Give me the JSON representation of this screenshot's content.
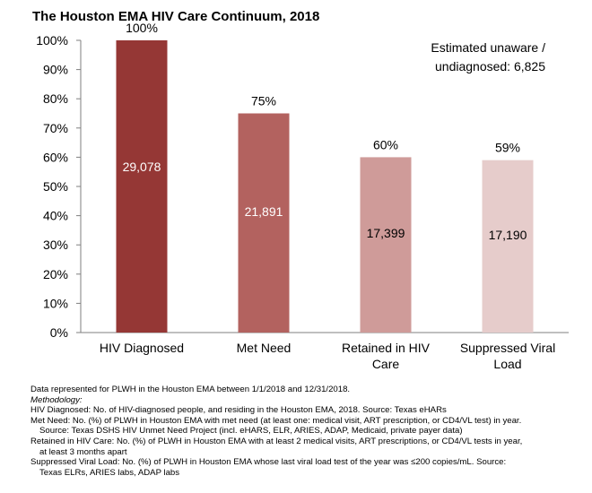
{
  "chart_data": {
    "type": "bar",
    "title": "The Houston EMA HIV Care Continuum, 2018",
    "categories": [
      "HIV Diagnosed",
      "Met Need",
      "Retained in HIV Care",
      "Suppressed Viral Load"
    ],
    "category_lines": [
      [
        "HIV Diagnosed"
      ],
      [
        "Met Need"
      ],
      [
        "Retained in HIV",
        "Care"
      ],
      [
        "Suppressed Viral",
        "Load"
      ]
    ],
    "values": [
      100,
      75,
      60,
      59
    ],
    "value_labels": [
      "100%",
      "75%",
      "60%",
      "59%"
    ],
    "counts": [
      "29,078",
      "21,891",
      "17,399",
      "17,190"
    ],
    "bar_colors": [
      "#953735",
      "#b3625f",
      "#cf9b99",
      "#e6cccb"
    ],
    "count_text_colors": [
      "#ffffff",
      "#ffffff",
      "#000000",
      "#000000"
    ],
    "ylim": [
      0,
      100
    ],
    "yticks": [
      "0%",
      "10%",
      "20%",
      "30%",
      "40%",
      "50%",
      "60%",
      "70%",
      "80%",
      "90%",
      "100%"
    ],
    "xlabel": "",
    "ylabel": "",
    "grid": false,
    "annotation": [
      "Estimated unaware /",
      "undiagnosed: 6,825"
    ]
  },
  "footnotes": [
    {
      "text": "Data represented for PLWH in the Houston EMA between 1/1/2018 and 12/31/2018.",
      "style": ""
    },
    {
      "text": "Methodology:",
      "style": "ital"
    },
    {
      "text": "HIV Diagnosed: No. of HIV-diagnosed people, and residing in the Houston EMA, 2018. Source: Texas eHARs",
      "style": ""
    },
    {
      "text": "Met Need: No. (%) of PLWH in Houston EMA with met need (at least one: medical visit, ART prescription, or CD4/VL test) in year.",
      "style": ""
    },
    {
      "text": "Source: Texas DSHS HIV Unmet Need Project (incl. eHARS, ELR, ARIES, ADAP, Medicaid, private payer data)",
      "style": "ind"
    },
    {
      "text": "Retained in HIV Care:  No. (%) of PLWH in Houston EMA with at least 2 medical visits, ART prescriptions, or CD4/VL tests in year,",
      "style": ""
    },
    {
      "text": "at least 3 months apart",
      "style": "ind"
    },
    {
      "text": "Suppressed Viral Load:  No. (%) of PLWH in Houston EMA whose last viral load test of the year was ≤200 copies/mL. Source:",
      "style": ""
    },
    {
      "text": "Texas ELRs, ARIES labs, ADAP labs",
      "style": "ind"
    }
  ]
}
